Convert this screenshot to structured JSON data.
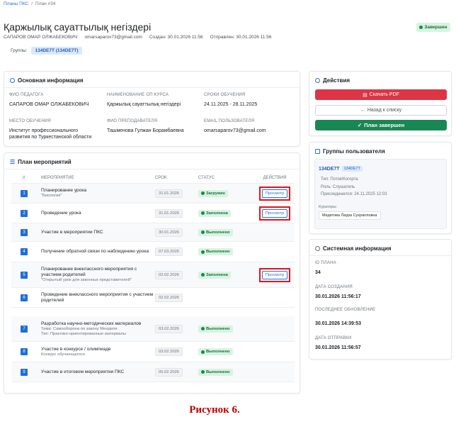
{
  "breadcrumb": {
    "items": [
      "Планы ПКС",
      "План #34"
    ],
    "separator": "/"
  },
  "header": {
    "title": "Қаржылық сауаттылық негіздері",
    "status": "Завершен",
    "meta": [
      "САПАРОВ ОМАР ОЛЖАБЕКОВИЧ",
      "omarsaparov73@gmail.com",
      "Создан: 30.01.2026 11:56",
      "Отправлен: 30.01.2026 11:56"
    ],
    "groups_label": "Группы:",
    "group_chip": "134DE7T (134DE7T)"
  },
  "main_info": {
    "title": "Основная информация",
    "fields": [
      {
        "label": "ФИО ПЕДАГОГА",
        "value": "САПАРОВ ОМАР ОЛЖАБЕКОВИЧ"
      },
      {
        "label": "НАИМЕНОВАНИЕ ОП КУРСА",
        "value": "Қаржылық сауаттылық негіздері"
      },
      {
        "label": "СРОКИ ОБУЧЕНИЯ",
        "value": "24.11.2025 - 28.11.2025"
      },
      {
        "label": "МЕСТО ОБУЧЕНИЯ",
        "value": "Институт профессионального развития по Туркестанской области"
      },
      {
        "label": "ФИО ПРЕПОДАВАТЕЛЯ",
        "value": "Ташменова Гулжан Борамбаевна"
      },
      {
        "label": "EMAIL ПОЛЬЗОВАТЕЛЯ",
        "value": "omarsaparov73@gmail.com"
      }
    ]
  },
  "plan": {
    "title": "План мероприятий",
    "columns": [
      "#",
      "МЕРОПРИЯТИЕ",
      "СРОК",
      "СТАТУС",
      "ДЕЙСТВИЯ"
    ],
    "rows": [
      {
        "number": 1,
        "name": "Планирование урока",
        "details": [
          "\"Биология\""
        ],
        "date": "31.01.2026",
        "status": "Загружен",
        "action": "Просмотр"
      },
      {
        "number": 2,
        "name": "Проведение урока",
        "details": [],
        "date": "31.01.2026",
        "status": "Заполнена",
        "action": "Просмотр"
      },
      {
        "number": 3,
        "name": "Участие в мероприятии ПКС",
        "details": [],
        "date": "30.01.2026",
        "status": "Выполнено"
      },
      {
        "number": 4,
        "name": "Получение обратной связи по наблюдению урока",
        "details": [],
        "date": "07.03.2026",
        "status": "Выполнено"
      },
      {
        "number": 5,
        "name": "Планирование внеклассного мероприятия с участием родителей",
        "details": [
          "\"Открытый урок для законных представителей\""
        ],
        "date": "02.02.2026",
        "status": "Заполнена",
        "action": "Просмотр"
      },
      {
        "number": 6,
        "name": "Проведение внеклассного мероприятия с участием родителей",
        "details": [],
        "date": "02.02.2026"
      },
      {
        "number": 7,
        "name": "Разработка научно-методических материалов",
        "details": [
          "Тема: Самооборона по закону Менделя",
          "Тип: Практико-ориентированные материалы"
        ],
        "date": "03.02.2026",
        "status": "Выполнено"
      },
      {
        "number": 8,
        "name": "Участие в конкурсе / олимпиаде",
        "details": [
          "Конкурс обучающегося"
        ],
        "date": "03.02.2026",
        "status": "Выполнено"
      },
      {
        "number": 9,
        "name": "Участие в итоговом мероприятии ПКС",
        "details": [],
        "date": "05.02.2026",
        "status": "Выполнено"
      }
    ]
  },
  "actions": {
    "title": "Действия",
    "download": "Скачать PDF",
    "back": "Назад к списку",
    "done": "План завершен"
  },
  "user_groups": {
    "title": "Группы пользователя",
    "group_name": "134DE7T",
    "group_chip": "134DE7T",
    "type": "Тип: Поток/Когорта",
    "role": "Роль: Слушатель",
    "joined": "Присоединился: 24.11.2025 12:03",
    "curators_label": "Кураторы:",
    "curator": "Медетова Лаура Сухрапловна"
  },
  "system_info": {
    "title": "Системная информация",
    "fields": [
      {
        "label": "ID ПЛАНА",
        "value": "34"
      },
      {
        "label": "ДАТА СОЗДАНИЯ",
        "value": "30.01.2026 11:56:17"
      },
      {
        "label": "ПОСЛЕДНЕЕ ОБНОВЛЕНИЕ",
        "value": "30.01.2026 14:39:53"
      },
      {
        "label": "ДАТА ОТПРАВКИ",
        "value": "30.01.2026 11:56:57"
      }
    ]
  },
  "caption": "Рисунок 6."
}
